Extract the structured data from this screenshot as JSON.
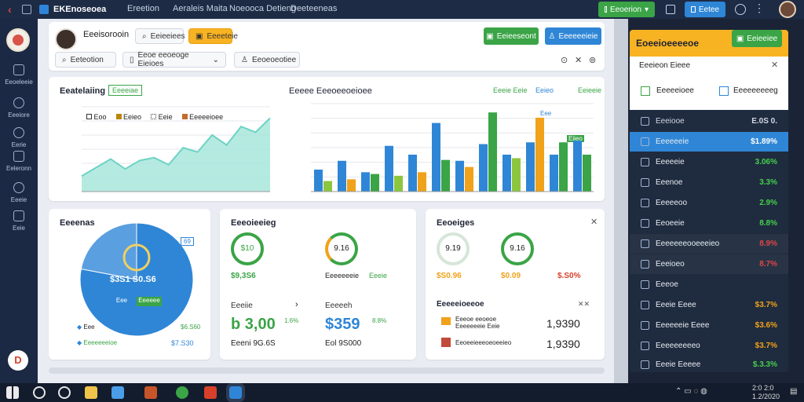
{
  "topbar": {
    "app_name": "EKEnoseoea",
    "nav": [
      "Ereetion",
      "Aeraleis Maita",
      "Noeooca Detieng",
      "Deeteeneas"
    ],
    "action_green": "Eeoerion",
    "action_blue": "Eetee"
  },
  "sidebar": {
    "items": [
      "Eeoeleeie",
      "Eeeiore",
      "Eerie",
      "Eeleronn",
      "Eeeie",
      "Eeie"
    ],
    "user_initial": "D"
  },
  "header": {
    "user_name": "Eeeisorooin",
    "pill_a": "Eeieeiees",
    "pill_b_active": "Eeeeteie",
    "btn_green": "Eeieeseont",
    "btn_blue": "Eeeeeeieie",
    "filter1": "Eeteotion",
    "filter2": "Eeoe eeoeoge Eieioes",
    "filter3": "Eeoeoeotiee"
  },
  "chart1": {
    "title": "Eeatelaiing",
    "badge": "Eeeeiae",
    "legend": [
      "Eoo",
      "Eeieo",
      "Eeie",
      "Eeeeeioee"
    ]
  },
  "chart2": {
    "title": "Eeeee Eeeoeeoeioee",
    "tag1": "Eeeie Eeie",
    "tag2": "Eeieo",
    "tag3": "Eeieeie",
    "callout1": "Eee",
    "callout2": "Eiieo"
  },
  "chart_data": [
    {
      "type": "area",
      "x": [
        1,
        2,
        3,
        4,
        5,
        6,
        7,
        8,
        9,
        10,
        11,
        12,
        13,
        14
      ],
      "values": [
        22,
        34,
        46,
        32,
        44,
        48,
        38,
        62,
        56,
        80,
        66,
        92,
        84,
        104
      ],
      "ylim": [
        0,
        120
      ],
      "grid": true,
      "color": "#6dd3c4"
    },
    {
      "type": "bar",
      "categories": [
        "1",
        "2",
        "3",
        "4",
        "5",
        "6",
        "7",
        "8",
        "9",
        "10",
        "11",
        "12"
      ],
      "series": [
        {
          "values": [
            25,
            35,
            22,
            52,
            42,
            78,
            35,
            54,
            42,
            56,
            42,
            58
          ],
          "color": "#2f86d6"
        },
        {
          "values": [
            12,
            14,
            20,
            18,
            22,
            36,
            28,
            90,
            38,
            84,
            56,
            42
          ],
          "color": "mixed"
        }
      ],
      "ylim": [
        0,
        100
      ],
      "grid": true
    },
    {
      "type": "pie",
      "values": [
        78,
        22
      ],
      "center_label": "$3S1 S0.S6"
    }
  ],
  "summary_card": {
    "title": "Eeeenas",
    "pie_label": "$3S1 S0.S6",
    "badge_blue": "Eee",
    "badge_green": "Eeeeee",
    "callout": "69",
    "leg1": "Eee",
    "leg1_val": "$6.S60",
    "leg2": "Eeeeeeeioe",
    "leg2_val": "$7.S30"
  },
  "dial_card": {
    "title": "Eeeoieeieg",
    "dial1": "$10",
    "dial1_value": "$9,3S6",
    "dial2": "9.16",
    "dial2_caption": "Eeeeeeeie",
    "dial2_value": "Eeeie",
    "sub_left": "Eeeiie",
    "sub_left_big": "b 3,00",
    "sub_left_pct": "1.6%",
    "sub_left_foot": "Eeeni 9G.6S",
    "sub_right": "Eeeeeh",
    "sub_right_big": "$359",
    "sub_right_pct": "8.8%",
    "sub_right_foot": "Eol 9S000"
  },
  "metrics_card": {
    "title": "Eeoeiges",
    "m1": "9.19",
    "m1_value": "$S0.96",
    "m2": "9.16",
    "m2_value": "$0.09",
    "m3_value": "$.S0%",
    "section": "Eeeeeioeeoe",
    "row1_label": "Eeeoe eeoeoe Eeeeeeeie Eeie",
    "row1_value": "1,9390",
    "row2_label": "Eeoeeieeeoeoeeieo",
    "row2_value": "1,9390"
  },
  "right_panel": {
    "header": "Eoeeioeeeeoe",
    "header_button": "Eeieeiee",
    "sub_title": "Eeeieon Eieee",
    "tab1": "Eeeeeioee",
    "tab2": "Eeeeeeeeeg",
    "rows": [
      {
        "label": "Eeeiooe",
        "value": "E.0S 0.",
        "color": "#cfd7e4"
      },
      {
        "label": "Eeeeeeie",
        "value": "$1.89%",
        "color": "#ffffff"
      },
      {
        "label": "Eeeeeie",
        "value": "3.06%",
        "color": "#45d04c"
      },
      {
        "label": "Eeenoe",
        "value": "3.3%",
        "color": "#45d04c"
      },
      {
        "label": "Eeeeeoo",
        "value": "2.9%",
        "color": "#45d04c"
      },
      {
        "label": "Eeoeeie",
        "value": "8.8%",
        "color": "#45d04c"
      },
      {
        "label": "Eeeeeeeooeeeieo",
        "value": "8.9%",
        "color": "#e04545"
      },
      {
        "label": "Eeeioeo",
        "value": "8.7%",
        "color": "#e04545"
      },
      {
        "label": "Eeeoe",
        "value": "",
        "color": "#cfd7e4"
      },
      {
        "label": "Eeeie Eeee",
        "value": "$3.7%",
        "color": "#f0a21a"
      },
      {
        "label": "Eeeeeeie Eeee",
        "value": "$3.6%",
        "color": "#f0a21a"
      },
      {
        "label": "Eeeeeeeeeo",
        "value": "$3.7%",
        "color": "#f0a21a"
      },
      {
        "label": "Eeeie Eeeee",
        "value": "$.3.3%",
        "color": "#45d04c"
      }
    ]
  },
  "taskbar": {
    "time": "2:0 2:0",
    "date": "1.2/2020"
  }
}
